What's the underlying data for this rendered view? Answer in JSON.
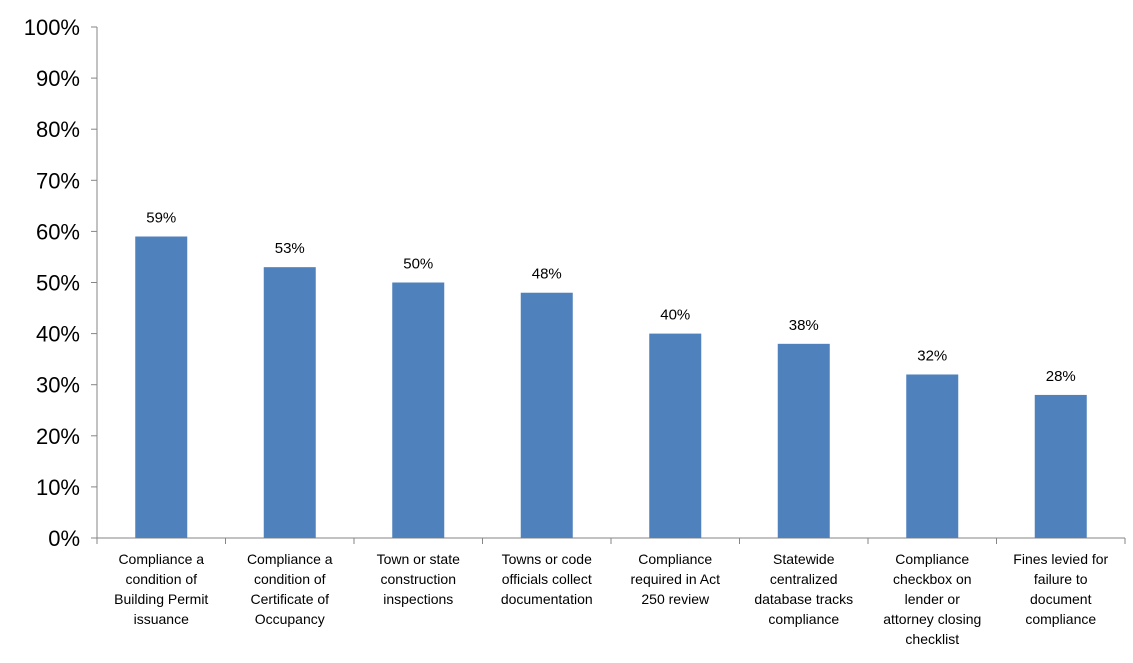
{
  "chart_data": {
    "type": "bar",
    "categories": [
      [
        "Compliance a",
        "condition of",
        "Building Permit",
        "issuance"
      ],
      [
        "Compliance a",
        "condition of",
        "Certificate of",
        "Occupancy"
      ],
      [
        "Town or state",
        "construction",
        "inspections"
      ],
      [
        "Towns or code",
        "officials collect",
        "documentation"
      ],
      [
        "Compliance",
        "required in Act",
        "250 review"
      ],
      [
        "Statewide",
        "centralized",
        "database tracks",
        "compliance"
      ],
      [
        "Compliance",
        "checkbox on",
        "lender or",
        "attorney closing",
        "checklist"
      ],
      [
        "Fines levied for",
        "failure to",
        "document",
        "compliance"
      ]
    ],
    "values": [
      59,
      53,
      50,
      48,
      40,
      38,
      32,
      28
    ],
    "data_labels": [
      "59%",
      "53%",
      "50%",
      "48%",
      "40%",
      "38%",
      "32%",
      "28%"
    ],
    "ylim": [
      0,
      100
    ],
    "yticks": [
      "0%",
      "10%",
      "20%",
      "30%",
      "40%",
      "50%",
      "60%",
      "70%",
      "80%",
      "90%",
      "100%"
    ],
    "bar_color": "#4F81BD",
    "grid": false,
    "legend": "none"
  }
}
